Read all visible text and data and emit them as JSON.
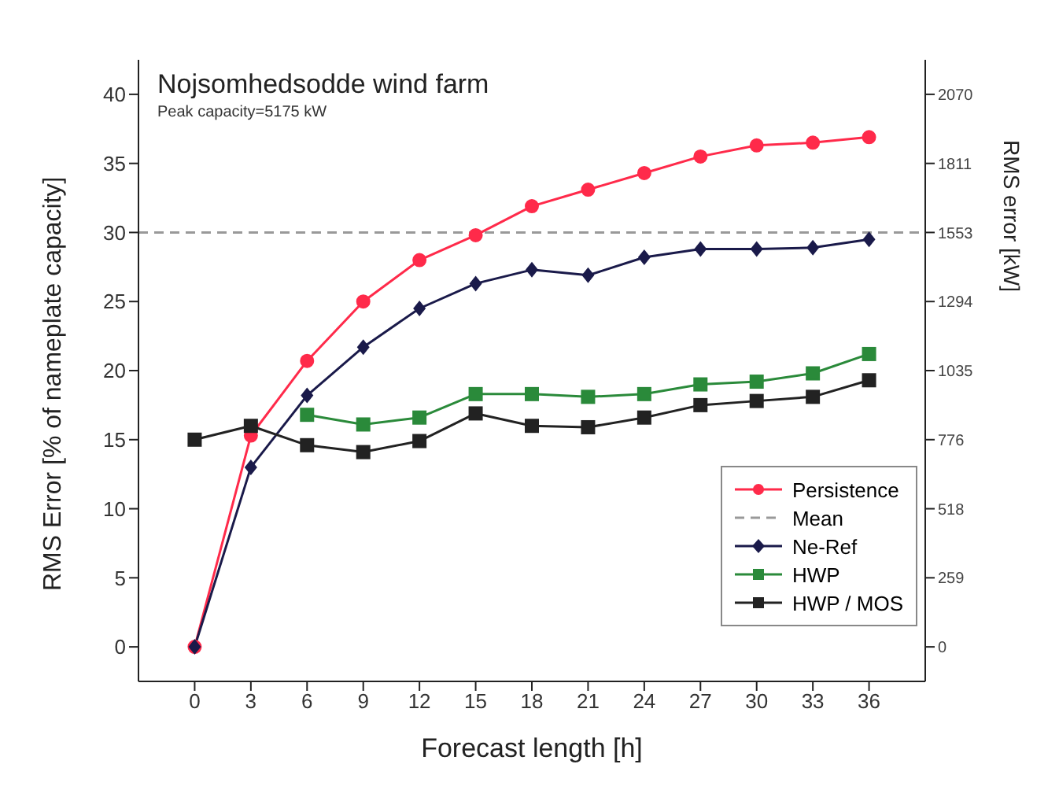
{
  "chart_data": {
    "type": "line",
    "title": "Nojsomhedsodde wind farm",
    "subtitle": "Peak capacity=5175 kW",
    "xlabel": "Forecast length [h]",
    "ylabel": "RMS Error [% of nameplate capacity]",
    "y2label": "RMS error [kW]",
    "x": [
      0,
      3,
      6,
      9,
      12,
      15,
      18,
      21,
      24,
      27,
      30,
      33,
      36
    ],
    "xlim": [
      -3,
      39
    ],
    "xticks": [
      0,
      3,
      6,
      9,
      12,
      15,
      18,
      21,
      24,
      27,
      30,
      33,
      36
    ],
    "ylim": [
      -2.5,
      42.5
    ],
    "yticks": [
      0,
      5,
      10,
      15,
      20,
      25,
      30,
      35,
      40
    ],
    "y2lim": [
      -129.375,
      2199.375
    ],
    "y2ticks": [
      0,
      {
        "value": 258.75,
        "label": "259"
      },
      {
        "value": 517.5,
        "label": "518"
      },
      {
        "value": 776.25,
        "label": "776"
      },
      1035,
      {
        "value": 1293.75,
        "label": "1294"
      },
      {
        "value": 1552.5,
        "label": "1553"
      },
      {
        "value": 1811.25,
        "label": "1811"
      },
      2070
    ],
    "grid": false,
    "legend": "bottom right",
    "series": [
      {
        "name": "Persistence",
        "color": "#ff2a4a",
        "marker": "circle",
        "values": [
          0,
          15.3,
          20.7,
          25,
          28,
          29.8,
          31.9,
          33.1,
          34.3,
          35.5,
          36.3,
          36.5,
          36.9
        ]
      },
      {
        "name": "Mean",
        "color": "#999999",
        "marker": "none",
        "line_style": "dashed",
        "x": [
          -3,
          39
        ],
        "values": [
          30,
          30
        ]
      },
      {
        "name": "Ne-Ref",
        "color": "#1a1a4a",
        "marker": "diamond",
        "values": [
          0,
          13,
          18.2,
          21.7,
          24.5,
          26.3,
          27.3,
          26.9,
          28.2,
          28.8,
          28.8,
          28.9,
          29.5
        ]
      },
      {
        "name": "HWP",
        "color": "#2a8a3a",
        "marker": "square",
        "values": [
          null,
          null,
          16.8,
          16.1,
          16.6,
          18.3,
          18.3,
          18.1,
          18.3,
          19,
          19.2,
          19.8,
          21.2
        ]
      },
      {
        "name": "HWP / MOS",
        "color": "#222222",
        "marker": "square",
        "values": [
          15,
          16,
          14.6,
          14.1,
          14.9,
          16.9,
          16,
          15.9,
          16.6,
          17.5,
          17.8,
          18.1,
          19.3
        ]
      }
    ]
  }
}
